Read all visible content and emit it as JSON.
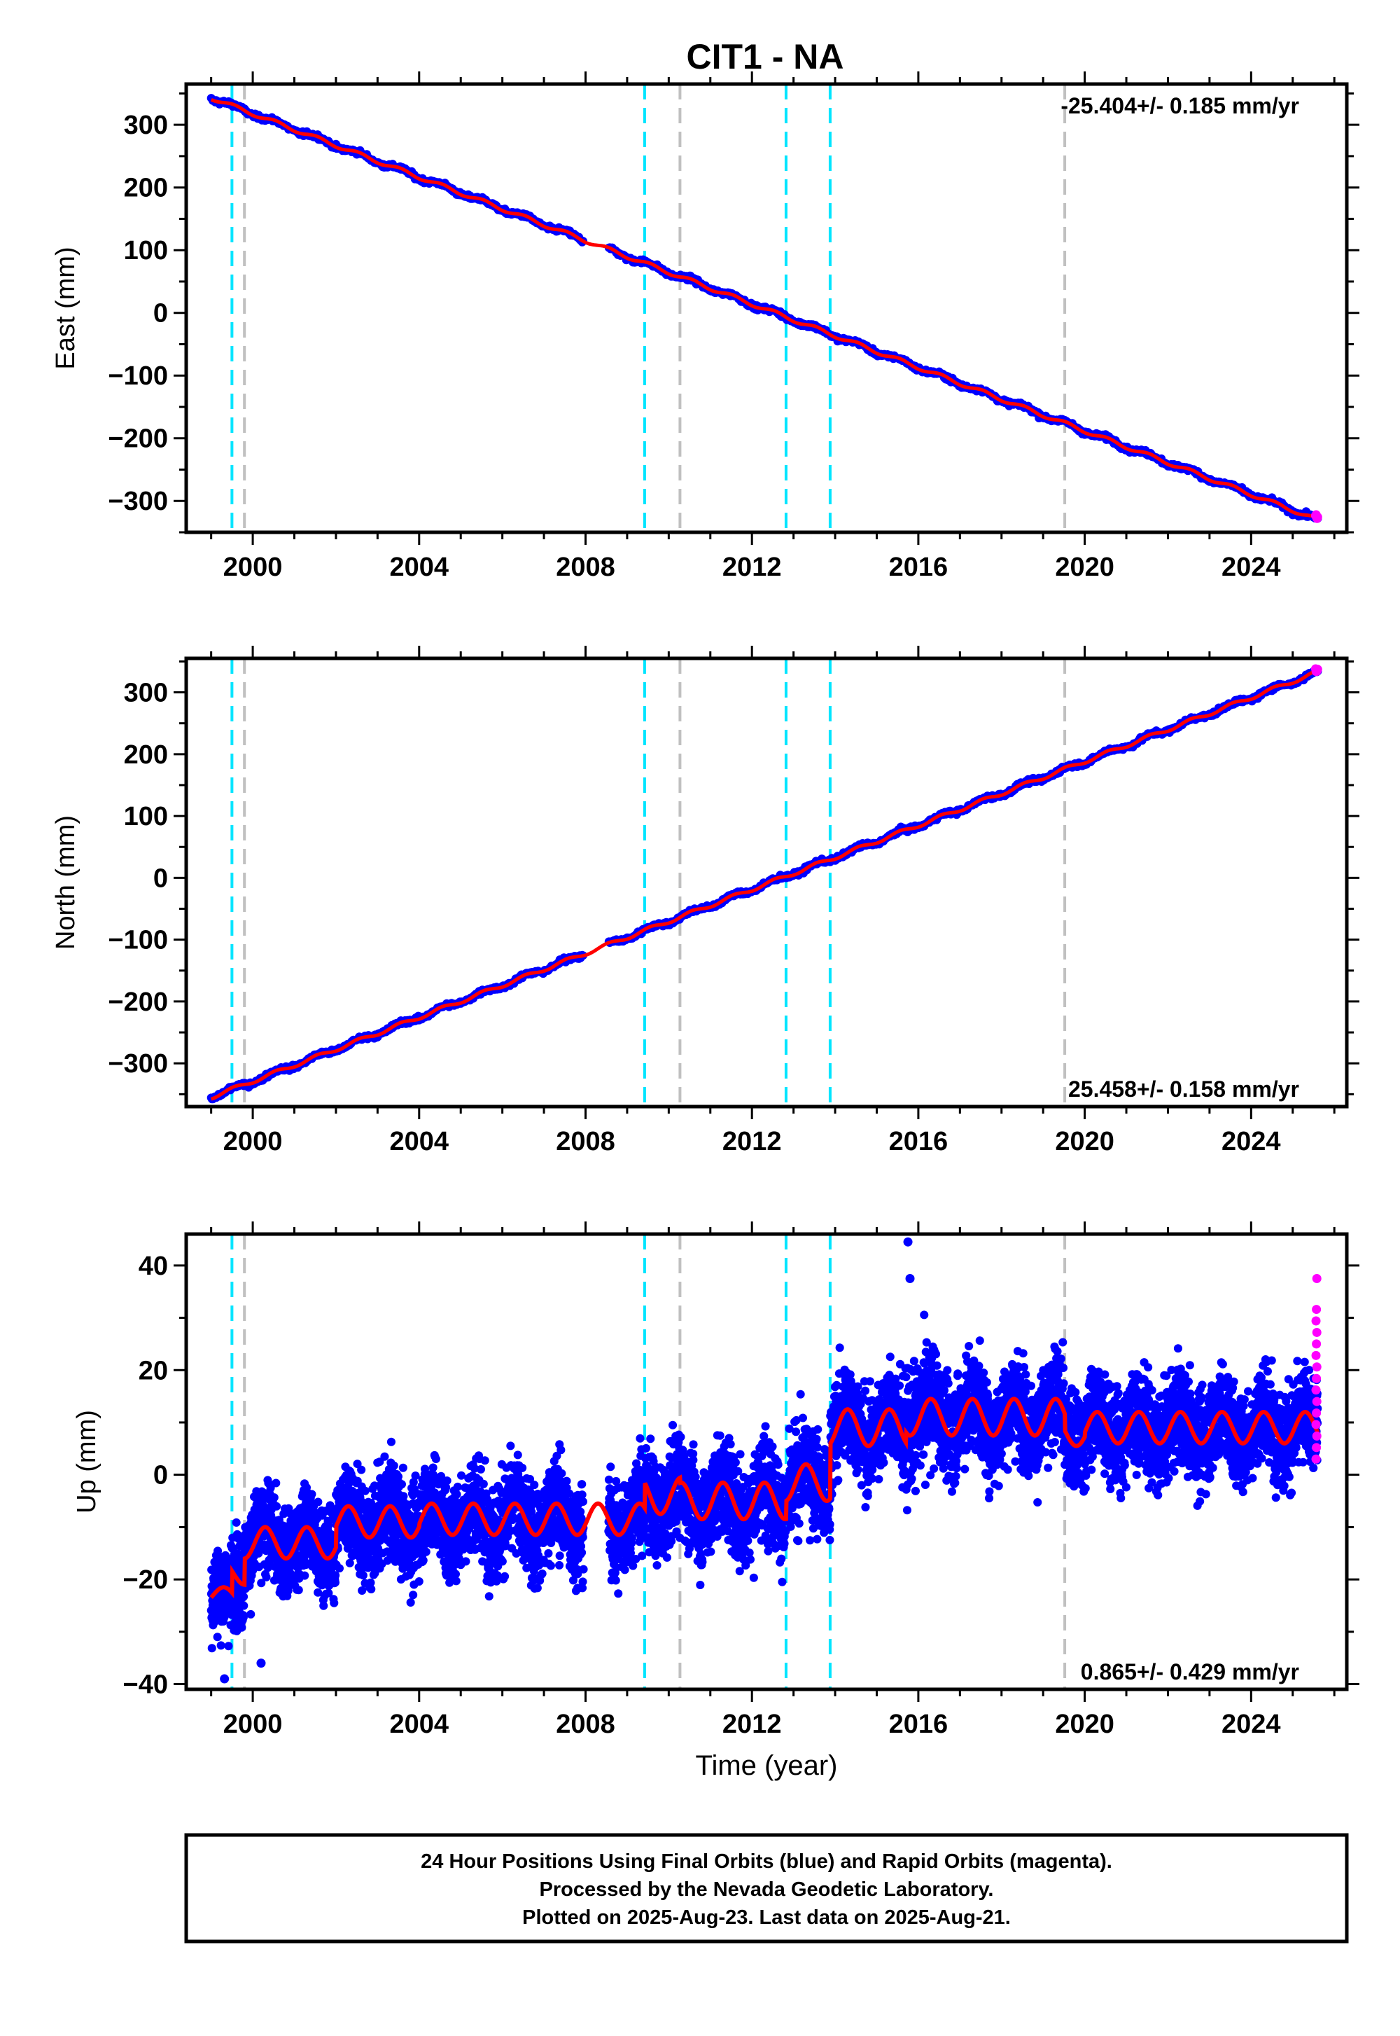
{
  "title": "CIT1 - NA",
  "footer": {
    "line1": "24 Hour Positions Using Final Orbits (blue) and Rapid Orbits (magenta).",
    "line2": "Processed by the Nevada Geodetic Laboratory.",
    "line3": "Plotted on 2025-Aug-23. Last data on 2025-Aug-21."
  },
  "colors": {
    "final_orbits": "#0000ff",
    "rapid_orbits": "#ff00ff",
    "model_fit": "#ff0000",
    "equipment_change": "#00e5ff",
    "event_marker": "#c0c0c0",
    "frame": "#000000"
  },
  "chart_data": [
    {
      "type": "scatter",
      "title": "CIT1 - NA",
      "ylabel": "East (mm)",
      "xlabel": "",
      "rate_label": "-25.404+/- 0.185 mm/yr",
      "xlim": [
        1998.4,
        2026.3
      ],
      "ylim": [
        -350,
        365
      ],
      "x_ticks": [
        2000,
        2004,
        2008,
        2012,
        2016,
        2020,
        2024
      ],
      "y_ticks": [
        -300,
        -200,
        -100,
        0,
        100,
        200,
        300
      ],
      "start": {
        "year": 1999.0,
        "value": 343
      },
      "end": {
        "year": 2025.6,
        "value": -330
      },
      "data_gap": [
        2007.95,
        2008.55
      ],
      "equipment_change_lines": [
        1999.5,
        2009.42,
        2012.82,
        2013.88
      ],
      "event_lines": [
        1999.8,
        2010.27,
        2019.52
      ],
      "series": [
        {
          "name": "Final Orbits (blue)",
          "style": "points"
        },
        {
          "name": "Rapid Orbits (magenta)",
          "style": "points"
        },
        {
          "name": "",
          "style": "model line"
        }
      ]
    },
    {
      "type": "scatter",
      "ylabel": "North (mm)",
      "xlabel": "",
      "rate_label": "25.458+/- 0.158 mm/yr",
      "xlim": [
        1998.4,
        2026.3
      ],
      "ylim": [
        -370,
        355
      ],
      "x_ticks": [
        2000,
        2004,
        2008,
        2012,
        2016,
        2020,
        2024
      ],
      "y_ticks": [
        -300,
        -200,
        -100,
        0,
        100,
        200,
        300
      ],
      "start": {
        "year": 1999.0,
        "value": -355
      },
      "end": {
        "year": 2025.6,
        "value": 333
      },
      "data_gap": [
        2007.95,
        2008.55
      ],
      "equipment_change_lines": [
        1999.5,
        2009.42,
        2012.82,
        2013.88
      ],
      "event_lines": [
        1999.8,
        2010.27,
        2019.52
      ],
      "series": [
        {
          "name": "Final Orbits (blue)",
          "style": "points"
        },
        {
          "name": "Rapid Orbits (magenta)",
          "style": "points"
        },
        {
          "name": "",
          "style": "model line"
        }
      ]
    },
    {
      "type": "scatter",
      "ylabel": "Up (mm)",
      "xlabel": "Time (year)",
      "rate_label": "0.865+/- 0.429 mm/yr",
      "xlim": [
        1998.4,
        2026.3
      ],
      "ylim": [
        -41,
        46
      ],
      "x_ticks": [
        2000,
        2004,
        2008,
        2012,
        2016,
        2020,
        2024
      ],
      "y_ticks": [
        -40,
        -20,
        0,
        20,
        40
      ],
      "data_gap": [
        2007.95,
        2008.55
      ],
      "equipment_change_lines": [
        1999.5,
        2009.42,
        2012.82,
        2013.88
      ],
      "event_lines": [
        1999.8,
        2010.27,
        2019.52
      ],
      "model_segments": [
        {
          "from": 1999.0,
          "to": 1999.5,
          "offset": -23,
          "amplitude": 1.5
        },
        {
          "from": 1999.5,
          "to": 1999.8,
          "offset": -19,
          "amplitude": 2
        },
        {
          "from": 1999.8,
          "to": 2002.0,
          "offset": -13,
          "amplitude": 3
        },
        {
          "from": 2002.0,
          "to": 2004.0,
          "offset": -9,
          "amplitude": 3
        },
        {
          "from": 2004.0,
          "to": 2009.42,
          "offset": -8.5,
          "amplitude": 3
        },
        {
          "from": 2009.42,
          "to": 2010.27,
          "offset": -4,
          "amplitude": 3.5
        },
        {
          "from": 2010.27,
          "to": 2012.82,
          "offset": -5,
          "amplitude": 3.5
        },
        {
          "from": 2012.82,
          "to": 2013.88,
          "offset": -1.5,
          "amplitude": 3.5
        },
        {
          "from": 2013.88,
          "to": 2015.7,
          "offset": 9,
          "amplitude": 3.5
        },
        {
          "from": 2015.7,
          "to": 2019.52,
          "offset": 11,
          "amplitude": 3.5
        },
        {
          "from": 2019.52,
          "to": 2020.0,
          "offset": 8,
          "amplitude": 2.5
        },
        {
          "from": 2020.0,
          "to": 2025.6,
          "offset": 9,
          "amplitude": 3
        }
      ],
      "outliers": [
        {
          "year": 2015.75,
          "value": 44.5
        },
        {
          "year": 2015.8,
          "value": 37.5
        },
        {
          "year": 2025.58,
          "value": 37.5
        },
        {
          "year": 1999.32,
          "value": -39
        },
        {
          "year": 2000.2,
          "value": -36
        }
      ],
      "series": [
        {
          "name": "Final Orbits (blue)",
          "style": "points"
        },
        {
          "name": "Rapid Orbits (magenta)",
          "style": "points"
        },
        {
          "name": "",
          "style": "model line"
        }
      ]
    }
  ]
}
